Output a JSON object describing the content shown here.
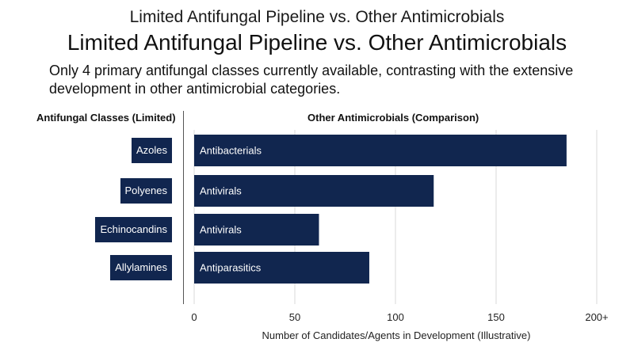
{
  "header": {
    "suptitle": "Limited Antifungal Pipeline vs. Other Antimicrobials",
    "title": "Limited Antifungal Pipeline vs. Other Antimicrobials",
    "subtitle_line1": "Only 4 primary antifungal classes currently available, contrasting with the extensive",
    "subtitle_line2": "development in other antimicrobial categories."
  },
  "left_panel": {
    "title": "Antifungal Classes (Limited)",
    "classes": [
      "Azoles",
      "Polyenes",
      "Echinocandins",
      "Allylamines"
    ]
  },
  "colors": {
    "bar": "#11264f",
    "grid": "#d9d9d9"
  },
  "chart_data": {
    "type": "bar",
    "orientation": "horizontal",
    "title": "Other Antimicrobials (Comparison)",
    "xlabel": "Number of Candidates/Agents in Development (Illustrative)",
    "categories": [
      "Antibacterials",
      "Antivirals",
      "Antivirals",
      "Antiparasitics"
    ],
    "values": [
      185,
      119,
      62,
      87
    ],
    "xlim": [
      0,
      200
    ],
    "ticks": [
      0,
      50,
      100,
      150,
      200
    ],
    "tick_labels": [
      "0",
      "50",
      "100",
      "150",
      "200+"
    ],
    "grid": true
  }
}
